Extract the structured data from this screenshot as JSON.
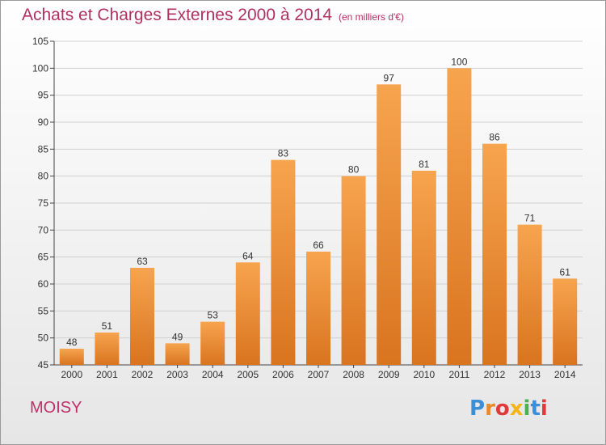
{
  "title": "Achats et Charges Externes 2000 à 2014",
  "subtitle": "(en milliers d'€)",
  "commune": "MOISY",
  "brand": "Proxiti",
  "brand_colors": [
    "#3a8fd6",
    "#e8892b",
    "#e23a3a",
    "#f2b51c",
    "#4caf50",
    "#3a8fd6",
    "#e23a3a"
  ],
  "colors": {
    "title": "#b03060",
    "bar_light": "#f7a44f",
    "bar_dark": "#d9741f",
    "grid": "#d0d0d0"
  },
  "chart_data": {
    "type": "bar",
    "title": "Achats et Charges Externes 2000 à 2014",
    "subtitle": "(en milliers d'€)",
    "categories": [
      "2000",
      "2001",
      "2002",
      "2003",
      "2004",
      "2005",
      "2006",
      "2007",
      "2008",
      "2009",
      "2010",
      "2011",
      "2012",
      "2013",
      "2014"
    ],
    "values": [
      48,
      51,
      63,
      49,
      53,
      64,
      83,
      66,
      80,
      97,
      81,
      100,
      86,
      71,
      61
    ],
    "ylim": [
      45,
      105
    ],
    "yticks": [
      45,
      50,
      55,
      60,
      65,
      70,
      75,
      80,
      85,
      90,
      95,
      100,
      105
    ],
    "grid": true,
    "data_labels": true
  }
}
